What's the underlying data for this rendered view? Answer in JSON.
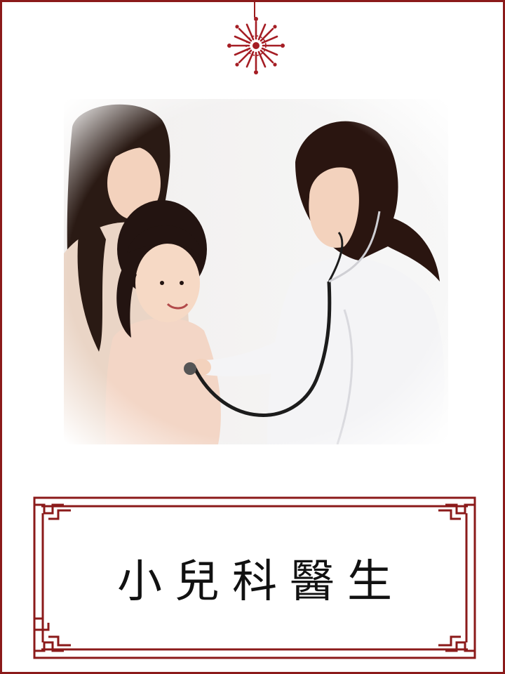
{
  "title": "小兒科醫生",
  "colors": {
    "frame": "#8b1a1a",
    "ornament": "#a51d24",
    "title_text": "#111111"
  },
  "photo": {
    "icon": "pediatric-checkup-illustration"
  }
}
